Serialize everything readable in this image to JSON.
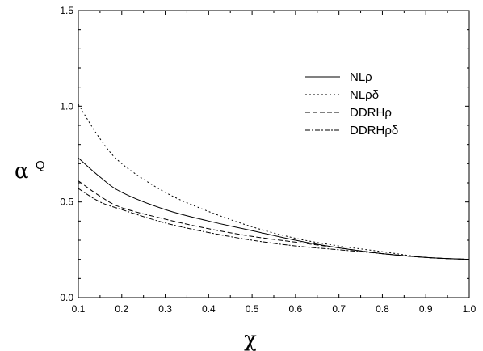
{
  "chart_data": {
    "type": "line",
    "title": "",
    "xlabel": "χ",
    "ylabel": "α",
    "ylabel_superscript": "Q",
    "xlim": [
      0.1,
      1.0
    ],
    "ylim": [
      0.0,
      1.5
    ],
    "x_ticks": [
      "0.1",
      "0.2",
      "0.3",
      "0.4",
      "0.5",
      "0.6",
      "0.7",
      "0.8",
      "0.9",
      "1.0"
    ],
    "y_ticks": [
      "0.0",
      "0.5",
      "1.0",
      "1.5"
    ],
    "grid": false,
    "legend_position": "top-right",
    "x": [
      0.1,
      0.15,
      0.2,
      0.3,
      0.4,
      0.5,
      0.6,
      0.7,
      0.8,
      0.9,
      1.0
    ],
    "series": [
      {
        "name": "NLρ",
        "style": "solid",
        "values": [
          0.73,
          0.63,
          0.55,
          0.46,
          0.4,
          0.35,
          0.3,
          0.26,
          0.23,
          0.21,
          0.2
        ]
      },
      {
        "name": "NLρδ",
        "style": "dotted",
        "values": [
          1.01,
          0.83,
          0.7,
          0.55,
          0.45,
          0.37,
          0.31,
          0.27,
          0.24,
          0.21,
          0.2
        ]
      },
      {
        "name": "DDRHρ",
        "style": "dashed",
        "values": [
          0.61,
          0.53,
          0.47,
          0.41,
          0.36,
          0.32,
          0.29,
          0.26,
          0.23,
          0.21,
          0.2
        ]
      },
      {
        "name": "DDRHρδ",
        "style": "dashdot",
        "values": [
          0.57,
          0.5,
          0.46,
          0.39,
          0.34,
          0.3,
          0.27,
          0.25,
          0.23,
          0.21,
          0.2
        ]
      }
    ]
  }
}
